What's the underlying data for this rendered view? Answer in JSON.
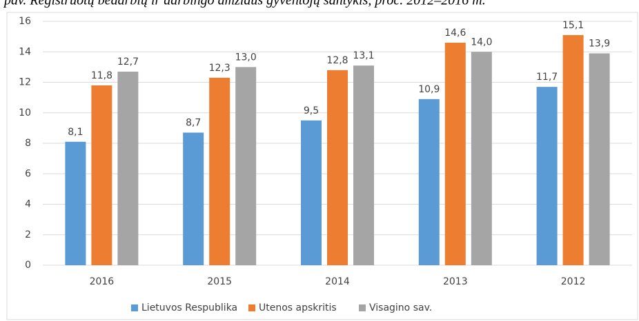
{
  "chart_data": {
    "type": "bar",
    "title": "pav. Registruotų bedarbių ir darbingo amžiaus gyventojų santykis, proc. 2012–2016 m.",
    "categories": [
      "2016",
      "2015",
      "2014",
      "2013",
      "2012"
    ],
    "series": [
      {
        "name": "Lietuvos Respublika",
        "color": "#5b9bd5",
        "values": [
          8.1,
          8.7,
          9.5,
          10.9,
          11.7
        ],
        "value_labels": [
          "8,1",
          "8,7",
          "9,5",
          "10,9",
          "11,7"
        ]
      },
      {
        "name": "Utenos apskritis",
        "color": "#ed7d31",
        "values": [
          11.8,
          12.3,
          12.8,
          14.6,
          15.1
        ],
        "value_labels": [
          "11,8",
          "12,3",
          "12,8",
          "14,6",
          "15,1"
        ]
      },
      {
        "name": "Visagino sav.",
        "color": "#a5a5a5",
        "values": [
          12.7,
          13.0,
          13.1,
          14.0,
          13.9
        ],
        "value_labels": [
          "12,7",
          "13,0",
          "13,1",
          "14,0",
          "13,9"
        ]
      }
    ],
    "ylim": [
      0,
      16
    ],
    "yticks": [
      0,
      2,
      4,
      6,
      8,
      10,
      12,
      14,
      16
    ],
    "grid": true,
    "legend": "bottom"
  }
}
